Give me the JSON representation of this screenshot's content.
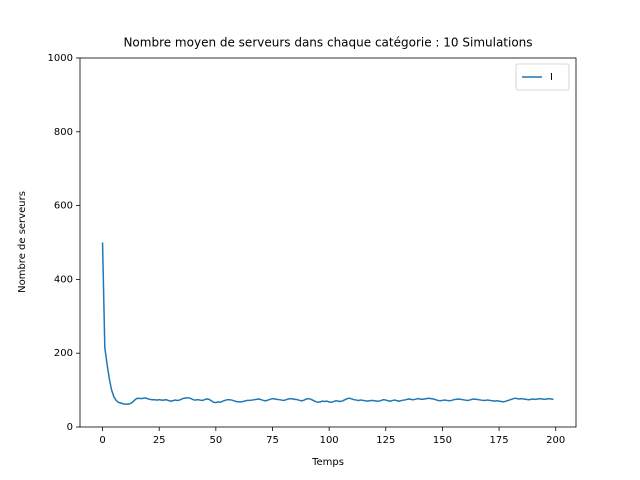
{
  "chart_data": {
    "type": "line",
    "title": "Nombre moyen de serveurs dans chaque catégorie : 10 Simulations",
    "xlabel": "Temps",
    "ylabel": "Nombre de serveurs",
    "x": [
      0,
      1,
      2,
      3,
      4,
      5,
      6,
      7,
      8,
      9,
      10,
      11,
      12,
      13,
      14,
      15,
      16,
      17,
      18,
      19,
      20,
      21,
      22,
      23,
      24,
      25,
      26,
      27,
      28,
      29,
      30,
      31,
      32,
      33,
      34,
      35,
      36,
      37,
      38,
      39,
      40,
      41,
      42,
      43,
      44,
      45,
      46,
      47,
      48,
      49,
      50,
      51,
      52,
      53,
      54,
      55,
      56,
      57,
      58,
      59,
      60,
      61,
      62,
      63,
      64,
      65,
      66,
      67,
      68,
      69,
      70,
      71,
      72,
      73,
      74,
      75,
      76,
      77,
      78,
      79,
      80,
      81,
      82,
      83,
      84,
      85,
      86,
      87,
      88,
      89,
      90,
      91,
      92,
      93,
      94,
      95,
      96,
      97,
      98,
      99,
      100,
      101,
      102,
      103,
      104,
      105,
      106,
      107,
      108,
      109,
      110,
      111,
      112,
      113,
      114,
      115,
      116,
      117,
      118,
      119,
      120,
      121,
      122,
      123,
      124,
      125,
      126,
      127,
      128,
      129,
      130,
      131,
      132,
      133,
      134,
      135,
      136,
      137,
      138,
      139,
      140,
      141,
      142,
      143,
      144,
      145,
      146,
      147,
      148,
      149,
      150,
      151,
      152,
      153,
      154,
      155,
      156,
      157,
      158,
      159,
      160,
      161,
      162,
      163,
      164,
      165,
      166,
      167,
      168,
      169,
      170,
      171,
      172,
      173,
      174,
      175,
      176,
      177,
      178,
      179,
      180,
      181,
      182,
      183,
      184,
      185,
      186,
      187,
      188,
      189,
      190,
      191,
      192,
      193,
      194,
      195,
      196,
      197,
      198,
      199
    ],
    "series": [
      {
        "name": "I",
        "color": "#1f77b4",
        "values": [
          500,
          215,
          170,
          130,
          100,
          82,
          72,
          67,
          65,
          63,
          62,
          62,
          63,
          66,
          72,
          77,
          78,
          77,
          78,
          79,
          76,
          75,
          74,
          74,
          73,
          74,
          73,
          73,
          74,
          72,
          70,
          71,
          73,
          72,
          73,
          76,
          78,
          79,
          79,
          77,
          74,
          73,
          74,
          73,
          72,
          74,
          76,
          75,
          71,
          67,
          66,
          68,
          67,
          70,
          72,
          74,
          74,
          73,
          71,
          69,
          68,
          68,
          69,
          71,
          72,
          72,
          73,
          74,
          75,
          76,
          74,
          72,
          71,
          73,
          75,
          77,
          76,
          75,
          74,
          73,
          72,
          74,
          76,
          77,
          76,
          75,
          74,
          72,
          71,
          73,
          76,
          77,
          75,
          72,
          69,
          67,
          68,
          70,
          69,
          70,
          68,
          67,
          69,
          71,
          70,
          69,
          71,
          74,
          77,
          78,
          76,
          74,
          73,
          72,
          73,
          72,
          71,
          70,
          71,
          72,
          71,
          70,
          70,
          72,
          74,
          73,
          71,
          70,
          72,
          73,
          71,
          70,
          72,
          73,
          74,
          76,
          75,
          74,
          75,
          77,
          76,
          75,
          76,
          77,
          78,
          77,
          76,
          74,
          72,
          71,
          72,
          73,
          72,
          71,
          72,
          74,
          75,
          76,
          75,
          74,
          73,
          72,
          73,
          75,
          76,
          75,
          74,
          73,
          72,
          72,
          73,
          72,
          71,
          70,
          71,
          70,
          69,
          68,
          70,
          72,
          74,
          76,
          78,
          77,
          76,
          77,
          76,
          75,
          74,
          75,
          76,
          75,
          76,
          77,
          76,
          75,
          76,
          77,
          76,
          75
        ]
      }
    ],
    "xlim": [
      -9.95,
      208.95
    ],
    "xticks": [
      0,
      25,
      50,
      75,
      100,
      125,
      150,
      175,
      200
    ],
    "ylim": [
      0,
      1000
    ],
    "yticks": [
      0,
      200,
      400,
      600,
      800,
      1000
    ],
    "legend": "upper right"
  }
}
